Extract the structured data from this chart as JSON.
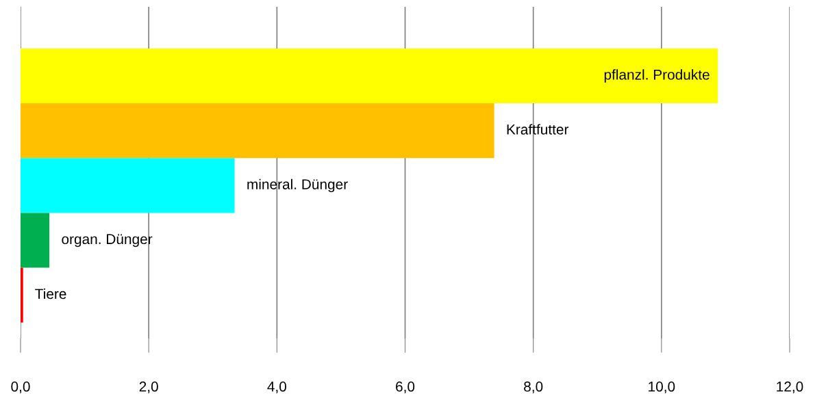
{
  "chart_data": {
    "type": "bar",
    "orientation": "horizontal",
    "categories": [
      "pflanzl. Produkte",
      "Kraftfutter",
      "mineral. Dünger",
      "organ. Dünger",
      "Tiere"
    ],
    "values": [
      10.88,
      7.39,
      3.34,
      0.45,
      0.04
    ],
    "colors": [
      "#ffff00",
      "#ffc000",
      "#00ffff",
      "#00b050",
      "#ff0000"
    ],
    "xlim": [
      0,
      12
    ],
    "xticks": [
      {
        "value": 0,
        "label": "0,0"
      },
      {
        "value": 2,
        "label": "2,0"
      },
      {
        "value": 4,
        "label": "4,0"
      },
      {
        "value": 6,
        "label": "6,0"
      },
      {
        "value": 8,
        "label": "8,0"
      },
      {
        "value": 10,
        "label": "10,0"
      },
      {
        "value": 12,
        "label": "12,0"
      }
    ],
    "grid": "x",
    "legend": false
  }
}
